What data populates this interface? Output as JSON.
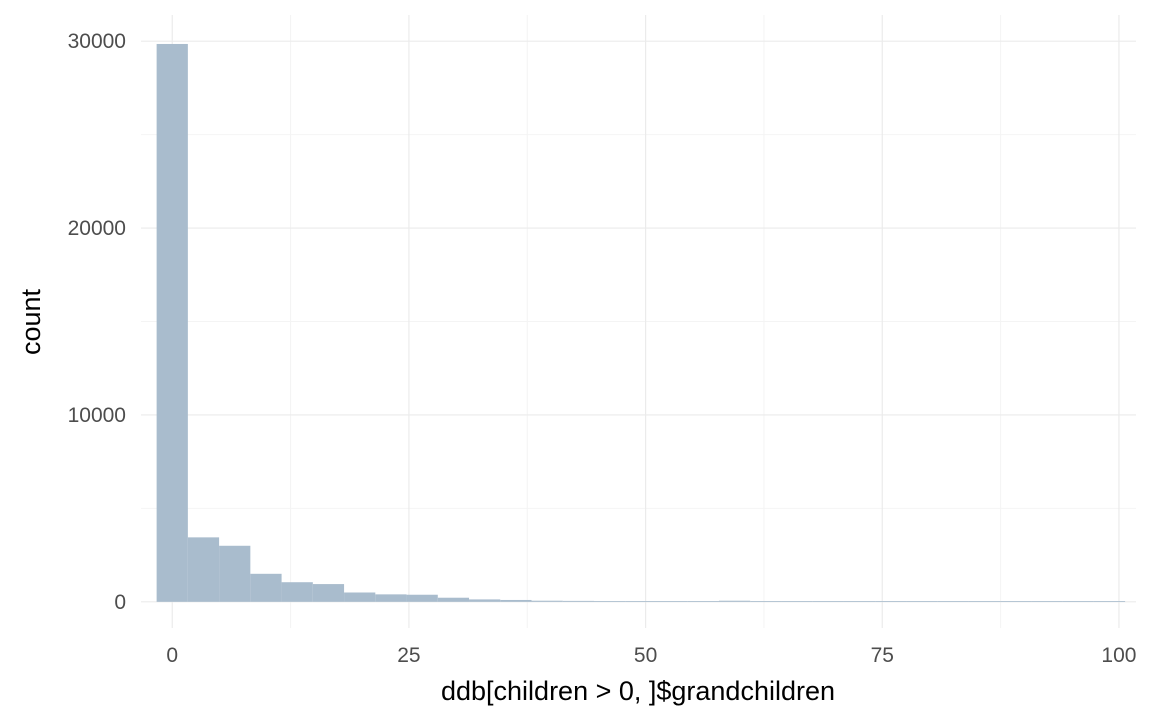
{
  "chart_data": {
    "type": "bar",
    "title": "",
    "xlabel": "ddb[children > 0, ]$grandchildren",
    "ylabel": "count",
    "xlim": [
      -3.3,
      101.8
    ],
    "ylim": [
      -1400,
      31400
    ],
    "x_ticks": [
      0,
      25,
      50,
      75,
      100
    ],
    "x_tick_labels": [
      "0",
      "25",
      "50",
      "75",
      "100"
    ],
    "y_ticks": [
      0,
      10000,
      20000,
      30000
    ],
    "y_tick_labels": [
      "0",
      "10000",
      "20000",
      "30000"
    ],
    "bin_width": 3.3,
    "bins": [
      {
        "x0": -1.65,
        "x1": 1.65,
        "count": 29850
      },
      {
        "x0": 1.65,
        "x1": 4.95,
        "count": 3450
      },
      {
        "x0": 4.95,
        "x1": 8.25,
        "count": 3000
      },
      {
        "x0": 8.25,
        "x1": 11.55,
        "count": 1500
      },
      {
        "x0": 11.55,
        "x1": 14.85,
        "count": 1050
      },
      {
        "x0": 14.85,
        "x1": 18.15,
        "count": 950
      },
      {
        "x0": 18.15,
        "x1": 21.45,
        "count": 500
      },
      {
        "x0": 21.45,
        "x1": 24.75,
        "count": 400
      },
      {
        "x0": 24.75,
        "x1": 28.05,
        "count": 380
      },
      {
        "x0": 28.05,
        "x1": 31.35,
        "count": 220
      },
      {
        "x0": 31.35,
        "x1": 34.65,
        "count": 130
      },
      {
        "x0": 34.65,
        "x1": 37.95,
        "count": 100
      },
      {
        "x0": 37.95,
        "x1": 41.25,
        "count": 60
      },
      {
        "x0": 41.25,
        "x1": 44.55,
        "count": 50
      },
      {
        "x0": 44.55,
        "x1": 47.85,
        "count": 40
      },
      {
        "x0": 47.85,
        "x1": 51.15,
        "count": 25
      },
      {
        "x0": 51.15,
        "x1": 54.45,
        "count": 20
      },
      {
        "x0": 54.45,
        "x1": 57.75,
        "count": 15
      },
      {
        "x0": 57.75,
        "x1": 61.05,
        "count": 60
      },
      {
        "x0": 61.05,
        "x1": 64.35,
        "count": 10
      },
      {
        "x0": 64.35,
        "x1": 67.65,
        "count": 8
      },
      {
        "x0": 67.65,
        "x1": 70.95,
        "count": 6
      },
      {
        "x0": 70.95,
        "x1": 74.25,
        "count": 5
      },
      {
        "x0": 74.25,
        "x1": 77.55,
        "count": 4
      },
      {
        "x0": 77.55,
        "x1": 80.85,
        "count": 3
      },
      {
        "x0": 80.85,
        "x1": 84.15,
        "count": 3
      },
      {
        "x0": 84.15,
        "x1": 87.45,
        "count": 2
      },
      {
        "x0": 87.45,
        "x1": 90.75,
        "count": 2
      },
      {
        "x0": 90.75,
        "x1": 94.05,
        "count": 2
      },
      {
        "x0": 94.05,
        "x1": 97.35,
        "count": 1
      },
      {
        "x0": 97.35,
        "x1": 100.65,
        "count": 1
      }
    ],
    "grid": true,
    "legend": "none",
    "colors": {
      "bar_fill": "#a9bccd",
      "grid_major": "#ebebeb",
      "grid_minor": "#f4f4f4",
      "tick_text": "#4d4d4d",
      "axis_title": "#000000",
      "background": "#ffffff"
    }
  }
}
